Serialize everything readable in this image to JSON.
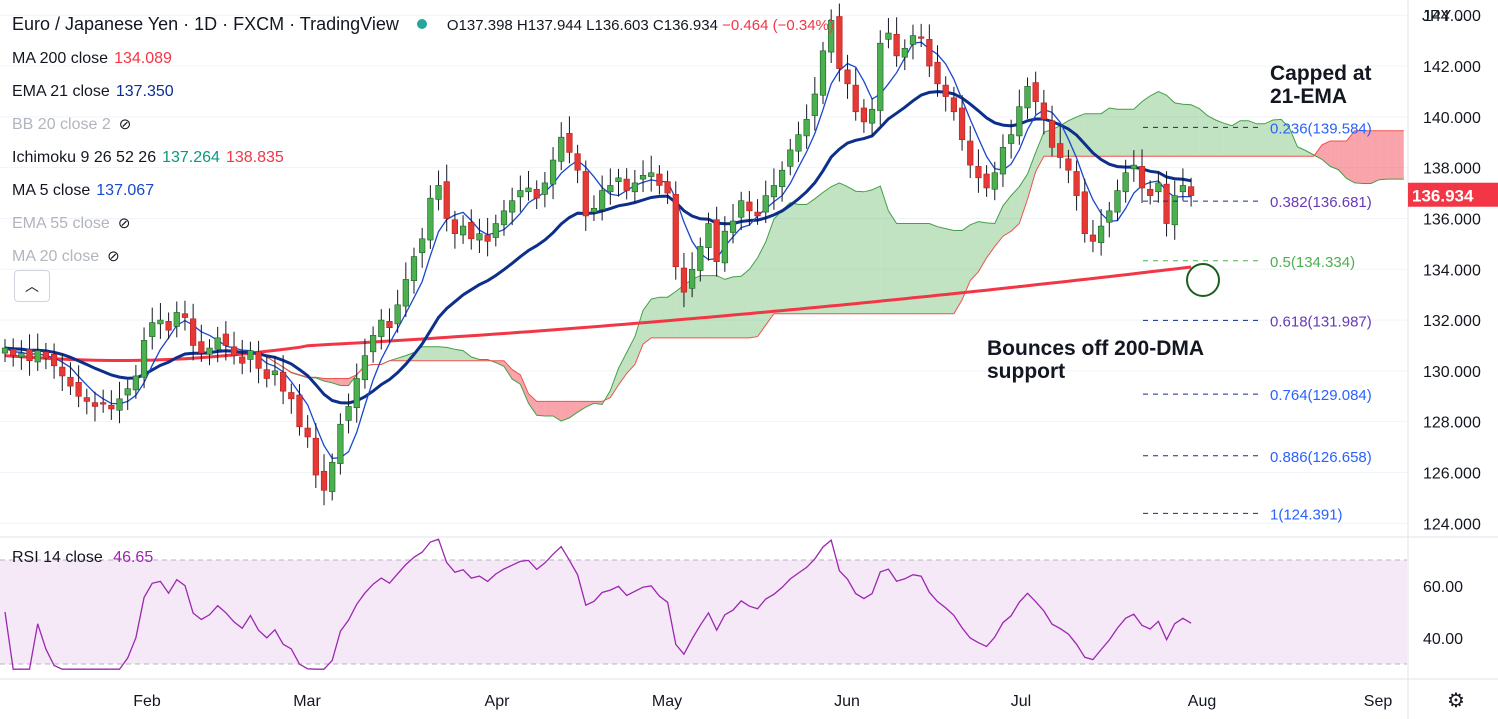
{
  "header": {
    "title": "Euro / Japanese Yen · 1D · FXCM · TradingView",
    "ohlc": {
      "open": "O137.398",
      "high": "H137.944",
      "low": "L136.603",
      "close": "C136.934",
      "change": "−0.464 (−0.34%)"
    },
    "currency": "JPY"
  },
  "indicators": [
    {
      "label": "MA 200 close",
      "value": "134.089",
      "color": "#f23645",
      "visible": true
    },
    {
      "label": "EMA 21 close",
      "value": "137.350",
      "color": "#0d2f8c",
      "visible": true
    },
    {
      "label": "BB 20 close 2",
      "value": "",
      "visible": false
    },
    {
      "label": "Ichimoku 9 26 52 26",
      "value": "137.264",
      "value2": "138.835",
      "color": "#089981",
      "color2": "#f23645",
      "visible": true
    },
    {
      "label": "MA 5 close",
      "value": "137.067",
      "color": "#1848cc",
      "visible": true
    },
    {
      "label": "EMA 55 close",
      "value": "",
      "visible": false
    },
    {
      "label": "MA 20 close",
      "value": "",
      "visible": false
    }
  ],
  "rsi": {
    "label": "RSI 14 close",
    "value": "46.65",
    "ticks": [
      "60.00",
      "40.00"
    ]
  },
  "annotations": {
    "capped": "Capped at\n21-EMA",
    "bounce": "Bounces off 200-DMA\nsupport"
  },
  "last_price": "136.934",
  "icons": {
    "eye": "eye-crossed-icon",
    "collapse": "chevron-up-icon",
    "settings": "gear-icon"
  },
  "chart_data": {
    "type": "candlestick",
    "title": "Euro / Japanese Yen · 1D · FXCM · TradingView",
    "xlabel": "",
    "ylabel": "",
    "x_ticks": [
      "Feb",
      "Mar",
      "Apr",
      "May",
      "Jun",
      "Jul",
      "Aug",
      "Sep"
    ],
    "y_ticks": [
      "144.000",
      "142.000",
      "140.000",
      "138.000",
      "136.000",
      "134.000",
      "132.000",
      "130.000",
      "128.000",
      "126.000",
      "124.000"
    ],
    "ylim": [
      123.5,
      144.6
    ],
    "fibonacci": [
      {
        "label": "0.236(139.584)",
        "value": 139.584
      },
      {
        "label": "0.382(136.681)",
        "value": 136.681
      },
      {
        "label": "0.5(134.334)",
        "value": 134.334
      },
      {
        "label": "0.618(131.987)",
        "value": 131.987
      },
      {
        "label": "0.764(129.084)",
        "value": 129.084
      },
      {
        "label": "0.886(126.658)",
        "value": 126.658
      },
      {
        "label": "1(124.391)",
        "value": 124.391
      }
    ],
    "closes": [
      130.9,
      130.6,
      130.7,
      130.4,
      130.8,
      130.5,
      130.2,
      129.8,
      129.4,
      129.0,
      128.8,
      128.6,
      128.7,
      128.5,
      128.9,
      129.3,
      129.8,
      131.2,
      131.9,
      132.0,
      131.6,
      132.3,
      132.1,
      131.0,
      130.7,
      130.9,
      131.3,
      131.0,
      130.6,
      130.3,
      130.8,
      130.1,
      129.7,
      130.0,
      129.2,
      128.9,
      127.8,
      127.4,
      125.9,
      125.3,
      126.4,
      127.9,
      128.6,
      129.7,
      130.6,
      131.4,
      132.0,
      131.7,
      132.6,
      133.6,
      134.5,
      135.2,
      136.8,
      137.3,
      136.0,
      135.4,
      135.7,
      135.2,
      135.4,
      135.1,
      135.8,
      136.3,
      136.7,
      137.1,
      137.2,
      136.8,
      137.4,
      138.3,
      139.2,
      138.6,
      137.9,
      136.1,
      136.4,
      137.1,
      137.3,
      137.6,
      137.1,
      137.4,
      137.7,
      137.8,
      137.3,
      137.0,
      134.1,
      133.1,
      134.0,
      134.9,
      135.8,
      134.3,
      135.5,
      135.9,
      136.7,
      136.3,
      136.1,
      136.9,
      137.3,
      137.9,
      138.7,
      139.3,
      139.9,
      140.9,
      142.6,
      143.8,
      141.9,
      141.3,
      140.2,
      139.8,
      140.3,
      142.9,
      143.3,
      142.4,
      142.7,
      143.2,
      143.1,
      142.0,
      141.3,
      140.8,
      140.2,
      139.1,
      138.1,
      137.6,
      137.2,
      137.8,
      138.8,
      139.3,
      140.4,
      141.2,
      140.6,
      139.9,
      138.8,
      138.4,
      137.9,
      136.9,
      135.4,
      135.1,
      135.7,
      136.3,
      137.1,
      137.8,
      138.1,
      137.2,
      136.9,
      137.4,
      135.8,
      136.9,
      137.3,
      136.9
    ]
  }
}
